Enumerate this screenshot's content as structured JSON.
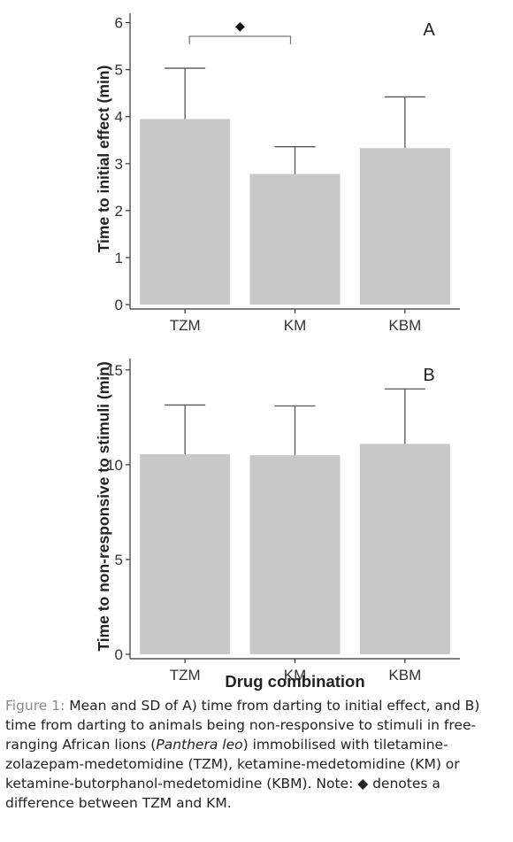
{
  "chart_data": [
    {
      "type": "bar",
      "panel_label": "A",
      "categories": [
        "TZM",
        "KM",
        "KBM"
      ],
      "values": [
        3.95,
        2.78,
        3.33
      ],
      "sd": [
        1.08,
        0.58,
        1.09
      ],
      "ylabel": "Time to initial effect (min)",
      "xlabel": "",
      "ylim": [
        0,
        6.2
      ],
      "yticks": [
        0,
        1,
        2,
        3,
        4,
        5,
        6
      ],
      "bar_color": "#c8c8c8",
      "grid": false,
      "annotation": {
        "symbol": "◆",
        "between": [
          "TZM",
          "KM"
        ]
      }
    },
    {
      "type": "bar",
      "panel_label": "B",
      "categories": [
        "TZM",
        "KM",
        "KBM"
      ],
      "values": [
        10.55,
        10.5,
        11.1
      ],
      "sd": [
        2.6,
        2.6,
        2.9
      ],
      "ylabel": "Time to non-responsive to stimuli (min)",
      "xlabel": "Drug combination",
      "ylim": [
        0,
        15.6
      ],
      "yticks": [
        0,
        5,
        10,
        15
      ],
      "bar_color": "#c8c8c8",
      "grid": false
    }
  ],
  "caption": {
    "label": "Figure 1:",
    "text_1": " Mean and SD of A) time from darting to initial effect, and B) time from darting to animals being non-responsive to stimuli in free-ranging African lions (",
    "species": "Panthera leo",
    "text_2": ") immobilised with tiletamine-zolazepam-medetomidine (TZM), ketamine-medetomidine (KM) or ketamine-butorphanol-medetomidine (KBM). Note: ◆ denotes a difference between TZM and KM."
  }
}
